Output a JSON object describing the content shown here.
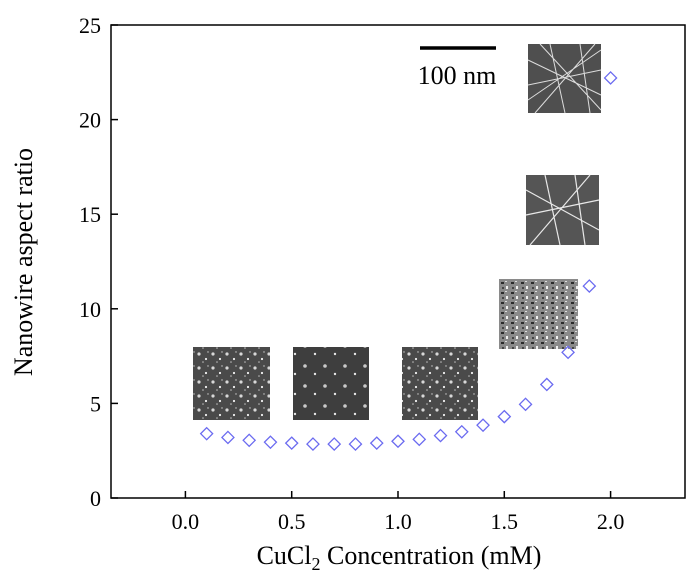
{
  "chart_data": {
    "type": "scatter",
    "title": "",
    "xlabel_prefix": "CuCl",
    "xlabel_sub": "2",
    "xlabel_suffix": " Concentration (mM)",
    "ylabel": "Nanowire aspect ratio",
    "xlim": [
      -0.35,
      2.35
    ],
    "ylim": [
      0,
      25
    ],
    "xticks": [
      0.0,
      0.5,
      1.0,
      1.5,
      2.0
    ],
    "xtick_labels": [
      "0.0",
      "0.5",
      "1.0",
      "1.5",
      "2.0"
    ],
    "yticks": [
      0,
      5,
      10,
      15,
      20,
      25
    ],
    "ytick_labels": [
      "0",
      "5",
      "10",
      "15",
      "20",
      "25"
    ],
    "grid": false,
    "legend": "none",
    "marker": "open-diamond",
    "marker_color": "#6b6bf0",
    "series": [
      {
        "x": [
          0.1,
          0.2,
          0.3,
          0.4,
          0.5,
          0.6,
          0.7,
          0.8,
          0.9,
          1.0,
          1.1,
          1.2,
          1.3,
          1.4,
          1.5,
          1.6,
          1.7,
          1.8,
          1.9,
          2.0
        ],
        "y": [
          3.4,
          3.2,
          3.05,
          2.95,
          2.9,
          2.85,
          2.85,
          2.85,
          2.9,
          3.0,
          3.1,
          3.3,
          3.5,
          3.85,
          4.3,
          4.95,
          6.0,
          7.7,
          11.2,
          22.2
        ]
      }
    ],
    "scale_bar_label": "100 nm",
    "inset_images": [
      "SEM micrograph",
      "SEM micrograph",
      "SEM micrograph",
      "SEM micrograph",
      "SEM micrograph",
      "SEM micrograph"
    ]
  }
}
